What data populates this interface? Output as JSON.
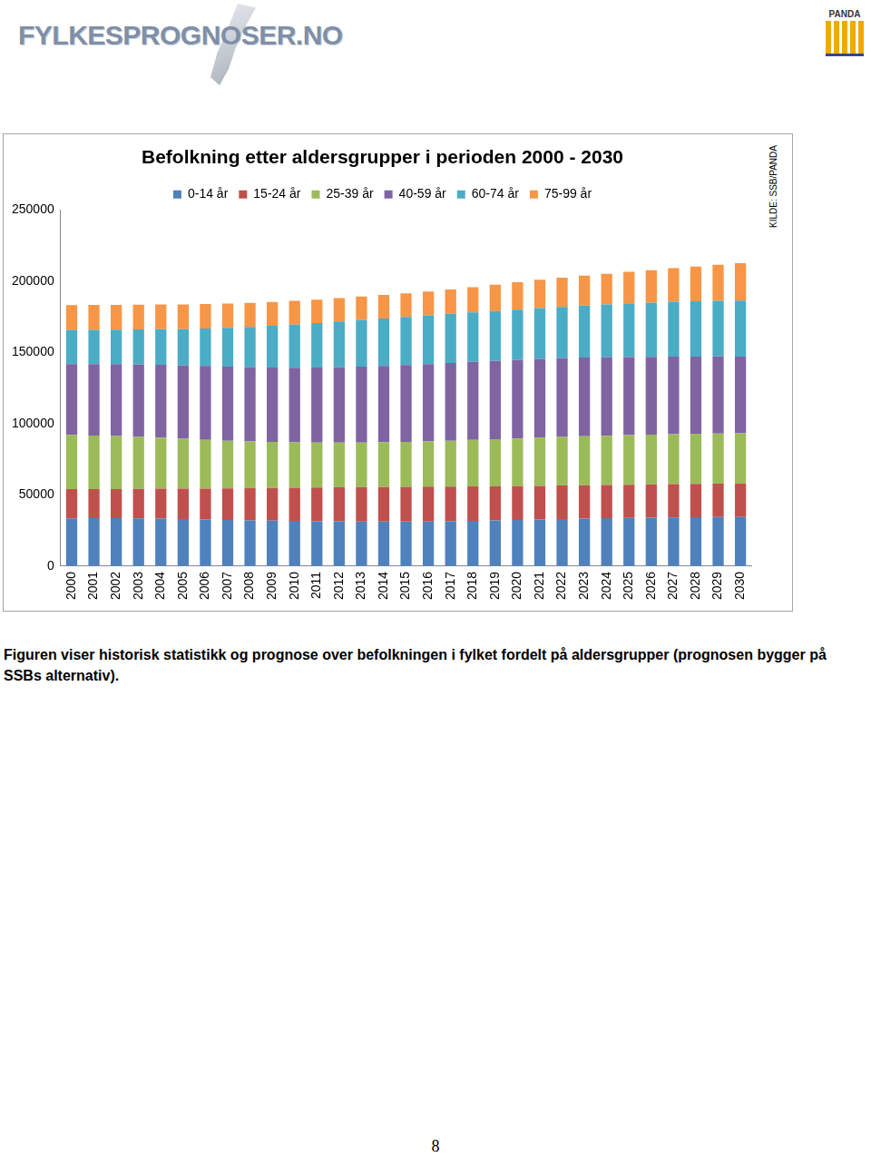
{
  "header": {
    "logo": "FYLKESPROGNOSER.NO",
    "badge": "PANDA"
  },
  "chart_data": {
    "type": "bar",
    "title": "Befolkning etter aldersgrupper i perioden 2000 - 2030",
    "annotations": [
      "KILDE: SSB/PANDA"
    ],
    "categories": [
      "2000",
      "2001",
      "2002",
      "2003",
      "2004",
      "2005",
      "2006",
      "2007",
      "2008",
      "2009",
      "2010",
      "2011",
      "2012",
      "2013",
      "2014",
      "2015",
      "2016",
      "2017",
      "2018",
      "2019",
      "2020",
      "2021",
      "2022",
      "2023",
      "2024",
      "2025",
      "2026",
      "2027",
      "2028",
      "2029",
      "2030"
    ],
    "series": [
      {
        "name": "0-14 år",
        "color": "#4f81bd",
        "values": [
          33500,
          33600,
          33600,
          33500,
          33300,
          33000,
          32700,
          32400,
          32100,
          31900,
          31700,
          31500,
          31400,
          31300,
          31200,
          31200,
          31300,
          31500,
          31800,
          32100,
          32400,
          32700,
          33000,
          33300,
          33600,
          33800,
          34000,
          34200,
          34300,
          34400,
          34500
        ]
      },
      {
        "name": "15-24 år",
        "color": "#c0504d",
        "values": [
          20500,
          20400,
          20500,
          20700,
          21000,
          21300,
          21700,
          22100,
          22600,
          23000,
          23300,
          23600,
          23900,
          24100,
          24300,
          24400,
          24400,
          24300,
          24100,
          23900,
          23700,
          23600,
          23500,
          23400,
          23300,
          23300,
          23300,
          23400,
          23400,
          23500,
          23500
        ]
      },
      {
        "name": "25-39 år",
        "color": "#9bbb59",
        "values": [
          38000,
          37600,
          37100,
          36500,
          35800,
          35000,
          34200,
          33500,
          32800,
          32200,
          31800,
          31500,
          31300,
          31300,
          31400,
          31600,
          31900,
          32200,
          32600,
          33000,
          33400,
          33800,
          34100,
          34400,
          34600,
          34800,
          34900,
          35000,
          35100,
          35200,
          35200
        ]
      },
      {
        "name": "40-59 år",
        "color": "#8064a2",
        "values": [
          49700,
          50100,
          50500,
          50900,
          51200,
          51500,
          51800,
          52000,
          52200,
          52300,
          52400,
          52700,
          53000,
          53300,
          53600,
          53900,
          54200,
          54500,
          54800,
          55000,
          55200,
          55300,
          55300,
          55200,
          55000,
          54800,
          54600,
          54400,
          54200,
          54000,
          53800
        ]
      },
      {
        "name": "60-74 år",
        "color": "#4bacc6",
        "values": [
          24100,
          24100,
          24200,
          24500,
          24900,
          25500,
          26300,
          27200,
          28100,
          29200,
          30300,
          31200,
          32000,
          32700,
          33300,
          33800,
          34200,
          34500,
          34800,
          35000,
          35200,
          35600,
          36000,
          36500,
          37100,
          37700,
          38100,
          38500,
          38800,
          39100,
          39300
        ]
      },
      {
        "name": "75-99 år",
        "color": "#f79646",
        "values": [
          17300,
          17400,
          17400,
          17400,
          17400,
          17300,
          17200,
          17000,
          16900,
          16700,
          16600,
          16500,
          16500,
          16400,
          16400,
          16500,
          16700,
          17100,
          17600,
          18400,
          19300,
          20000,
          20500,
          21000,
          21500,
          22100,
          22800,
          23600,
          24400,
          25300,
          26200
        ]
      }
    ],
    "ylim": [
      0,
      250000
    ],
    "yticks": [
      0,
      50000,
      100000,
      150000,
      200000,
      250000
    ],
    "stacked": true,
    "grid": false,
    "legend": "top"
  },
  "caption": "Figuren viser historisk statistikk og prognose over befolkningen i fylket fordelt på aldersgrupper (prognosen bygger på SSBs alternativ).",
  "page_number": "8"
}
